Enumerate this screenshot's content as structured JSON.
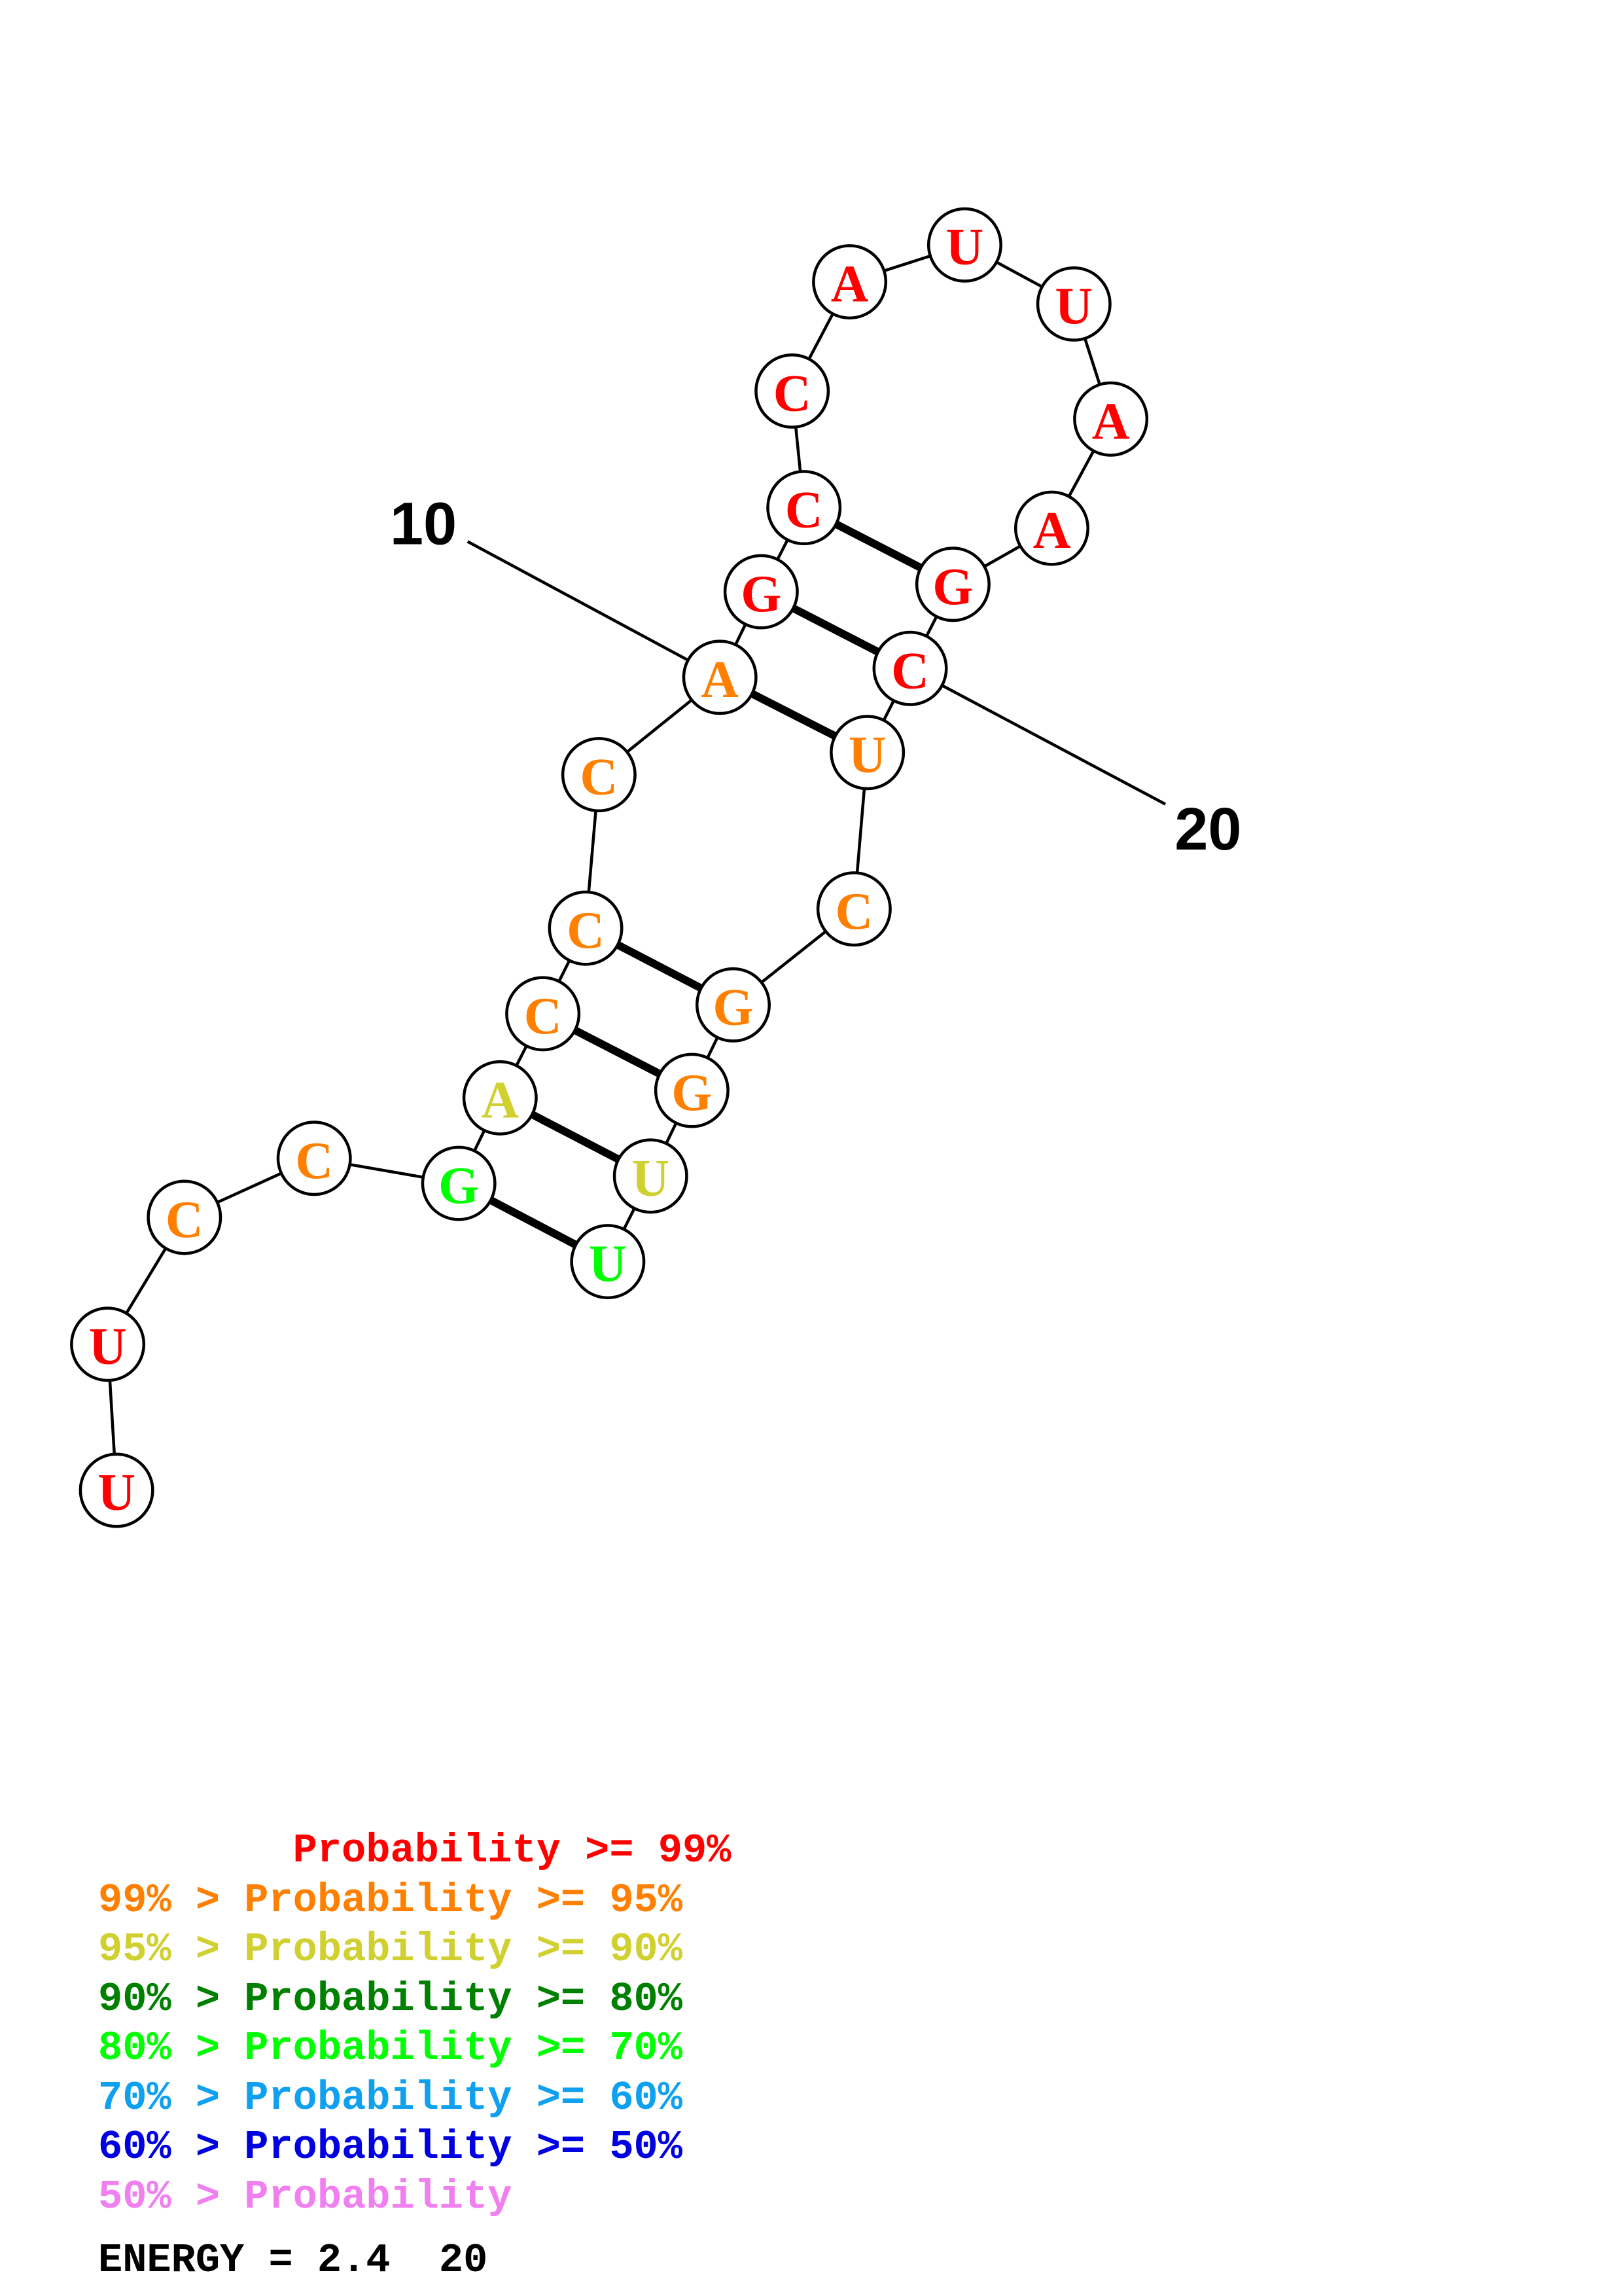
{
  "structure": {
    "bases": [
      {
        "n": 1,
        "base": "U",
        "color": "#ff0000"
      },
      {
        "n": 2,
        "base": "U",
        "color": "#ff0000"
      },
      {
        "n": 3,
        "base": "C",
        "color": "#ff8000"
      },
      {
        "n": 4,
        "base": "C",
        "color": "#ff8000"
      },
      {
        "n": 5,
        "base": "G",
        "color": "#00ff00"
      },
      {
        "n": 6,
        "base": "A",
        "color": "#d0d030"
      },
      {
        "n": 7,
        "base": "C",
        "color": "#ff8000"
      },
      {
        "n": 8,
        "base": "C",
        "color": "#ff8000"
      },
      {
        "n": 9,
        "base": "C",
        "color": "#ff8000"
      },
      {
        "n": 10,
        "base": "A",
        "color": "#ff8000"
      },
      {
        "n": 11,
        "base": "G",
        "color": "#ff0000"
      },
      {
        "n": 12,
        "base": "C",
        "color": "#ff0000"
      },
      {
        "n": 13,
        "base": "C",
        "color": "#ff0000"
      },
      {
        "n": 14,
        "base": "A",
        "color": "#ff0000"
      },
      {
        "n": 15,
        "base": "U",
        "color": "#ff0000"
      },
      {
        "n": 16,
        "base": "U",
        "color": "#ff0000"
      },
      {
        "n": 17,
        "base": "A",
        "color": "#ff0000"
      },
      {
        "n": 18,
        "base": "A",
        "color": "#ff0000"
      },
      {
        "n": 19,
        "base": "G",
        "color": "#ff0000"
      },
      {
        "n": 20,
        "base": "C",
        "color": "#ff0000"
      },
      {
        "n": 21,
        "base": "U",
        "color": "#ff8000"
      },
      {
        "n": 22,
        "base": "C",
        "color": "#ff8000"
      },
      {
        "n": 23,
        "base": "G",
        "color": "#ff8000"
      },
      {
        "n": 24,
        "base": "G",
        "color": "#ff8000"
      },
      {
        "n": 25,
        "base": "U",
        "color": "#d0d030"
      },
      {
        "n": 26,
        "base": "U",
        "color": "#00ff00"
      }
    ],
    "pairs": [
      [
        5,
        26
      ],
      [
        6,
        25
      ],
      [
        7,
        24
      ],
      [
        8,
        23
      ],
      [
        10,
        21
      ],
      [
        11,
        20
      ],
      [
        12,
        19
      ]
    ],
    "number_labels": [
      {
        "text": "10",
        "base": 10
      },
      {
        "text": "20",
        "base": 20
      }
    ]
  },
  "legend": [
    {
      "text": "        Probability >= 99%",
      "color": "#ff0000"
    },
    {
      "text": "99% > Probability >= 95%",
      "color": "#ff8000"
    },
    {
      "text": "95% > Probability >= 90%",
      "color": "#d0d030"
    },
    {
      "text": "90% > Probability >= 80%",
      "color": "#008000"
    },
    {
      "text": "80% > Probability >= 70%",
      "color": "#00ff00"
    },
    {
      "text": "70% > Probability >= 60%",
      "color": "#10a0f0"
    },
    {
      "text": "60% > Probability >= 50%",
      "color": "#0000e0"
    },
    {
      "text": "50% > Probability",
      "color": "#f080f0"
    }
  ],
  "energy": "ENERGY = 2.4  20"
}
